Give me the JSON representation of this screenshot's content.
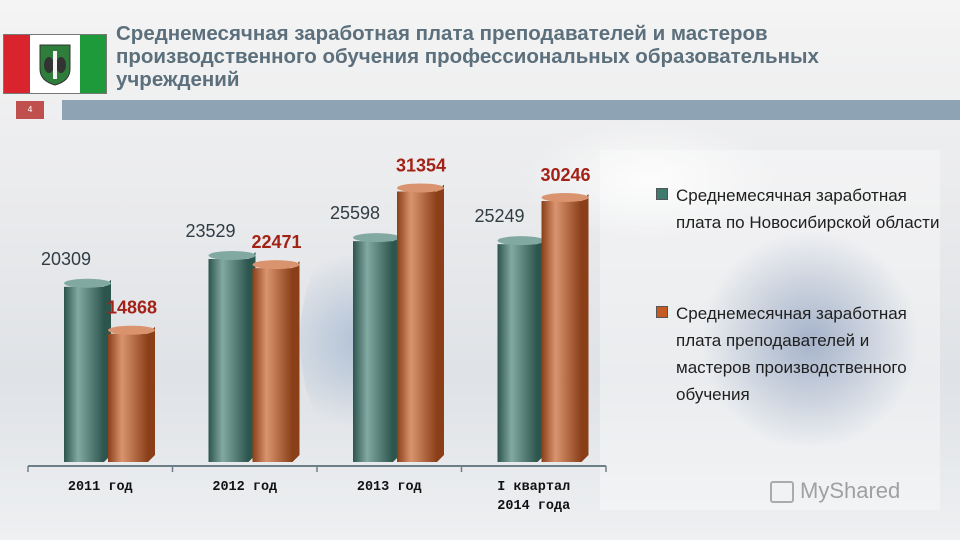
{
  "header": {
    "title": "Среднемесячная заработная плата преподавателей и мастеров производственного обучения профессиональных образовательных учреждений",
    "slide_number": "4"
  },
  "colors": {
    "series1": "#3f7a6f",
    "series2": "#c55a22",
    "accent_bar": "#8ea3b4",
    "slide_badge": "#c0504d"
  },
  "chart_data": {
    "type": "bar",
    "categories": [
      "2011 год",
      "2012 год",
      "2013 год",
      "I квартал 2014 года"
    ],
    "series": [
      {
        "name": "Среднемесячная заработная плата по Новосибирской области",
        "values": [
          20309,
          23529,
          25598,
          25249
        ]
      },
      {
        "name": "Среднемесячная заработная плата преподавателей и мастеров производственного обучения",
        "values": [
          14868,
          22471,
          31354,
          30246
        ]
      }
    ],
    "ylim": [
      0,
      35000
    ],
    "grid": false,
    "legend_position": "right",
    "data_labels": true
  },
  "watermark": "MyShared"
}
